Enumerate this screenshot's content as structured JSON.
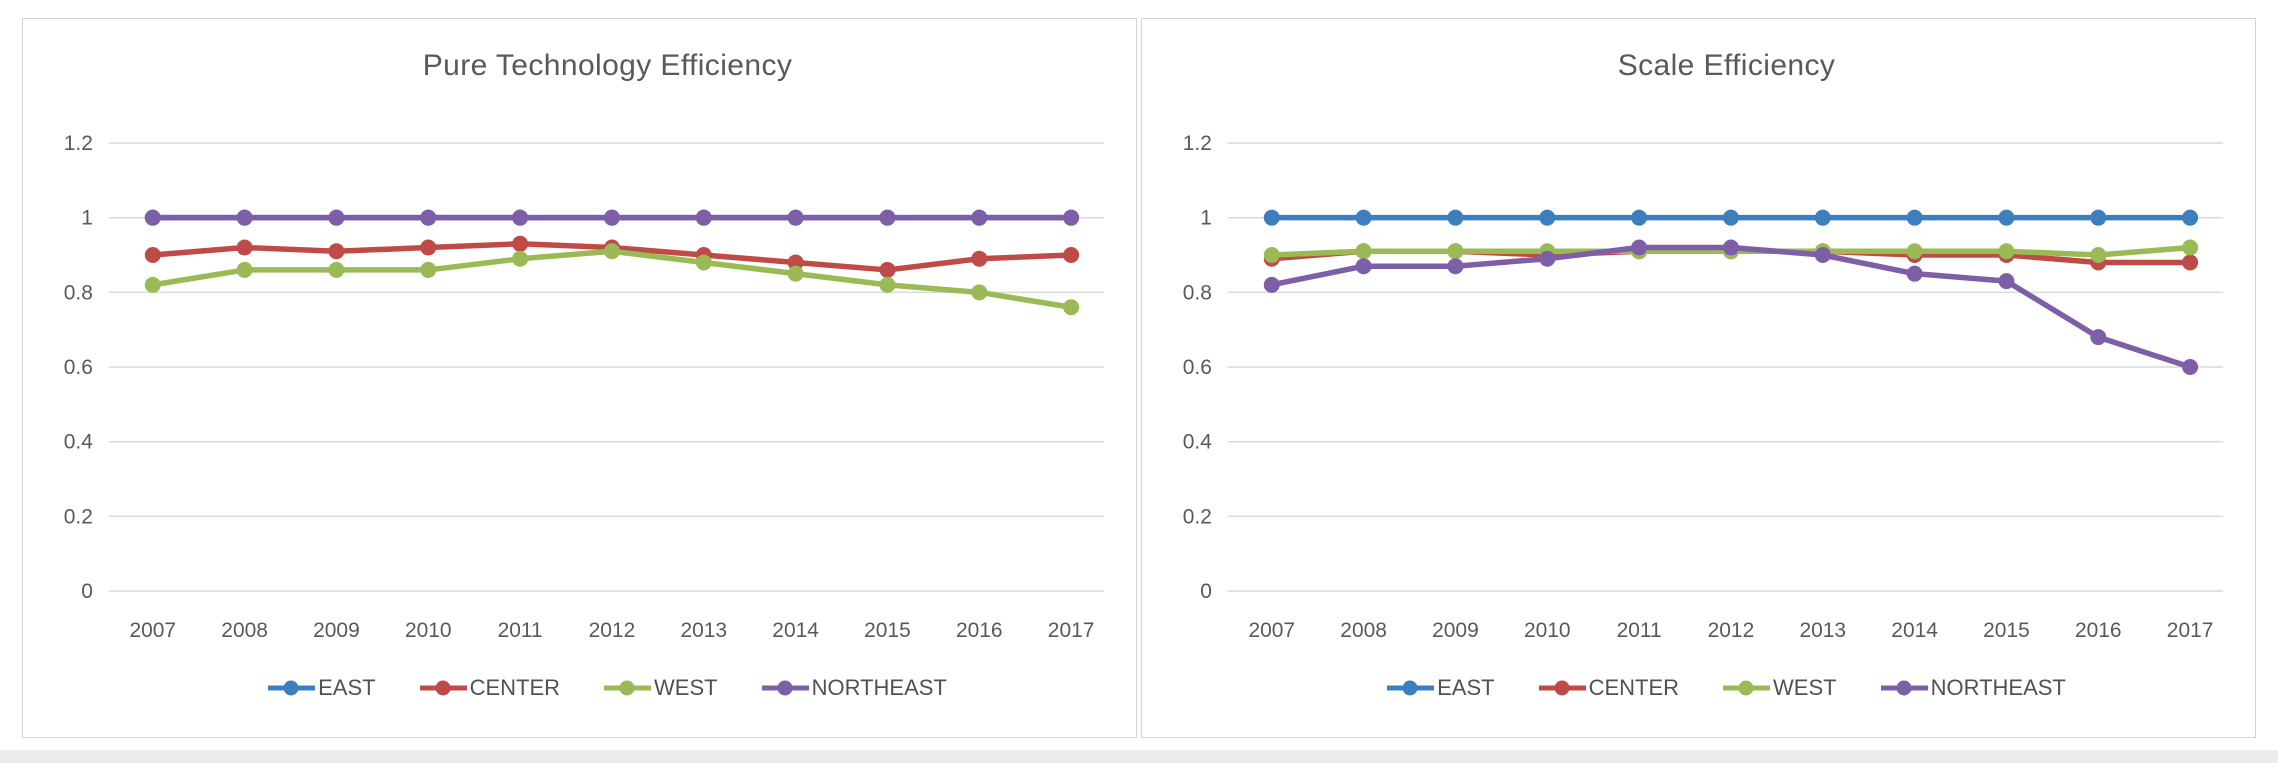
{
  "page": {
    "background": "#ffffff",
    "footer_strip_color": "#ececec"
  },
  "styles": {
    "grid_color": "#d9d9d9",
    "panel_border_color": "#d4d4d4",
    "title_color": "#595959",
    "tick_color": "#595959",
    "legend_text_color": "#515151"
  },
  "chart_data": [
    {
      "type": "line",
      "title": "Pure Technology Efficiency",
      "categories": [
        "2007",
        "2008",
        "2009",
        "2010",
        "2011",
        "2012",
        "2013",
        "2014",
        "2015",
        "2016",
        "2017"
      ],
      "yticks": [
        "0",
        "0.2",
        "0.4",
        "0.6",
        "0.8",
        "1",
        "1.2"
      ],
      "ylim": [
        0,
        1.2
      ],
      "grid": true,
      "legend_position": "bottom",
      "series": [
        {
          "name": "EAST",
          "color": "#3d7ebf",
          "values": [
            1.0,
            1.0,
            1.0,
            1.0,
            1.0,
            1.0,
            1.0,
            1.0,
            1.0,
            1.0,
            1.0
          ]
        },
        {
          "name": "CENTER",
          "color": "#be4b48",
          "values": [
            0.9,
            0.92,
            0.91,
            0.92,
            0.93,
            0.92,
            0.9,
            0.88,
            0.86,
            0.89,
            0.9
          ]
        },
        {
          "name": "WEST",
          "color": "#9aba56",
          "values": [
            0.82,
            0.86,
            0.86,
            0.86,
            0.89,
            0.91,
            0.88,
            0.85,
            0.82,
            0.8,
            0.76
          ]
        },
        {
          "name": "NORTHEAST",
          "color": "#7d5fa7",
          "values": [
            1.0,
            1.0,
            1.0,
            1.0,
            1.0,
            1.0,
            1.0,
            1.0,
            1.0,
            1.0,
            1.0
          ]
        }
      ]
    },
    {
      "type": "line",
      "title": "Scale Efficiency",
      "categories": [
        "2007",
        "2008",
        "2009",
        "2010",
        "2011",
        "2012",
        "2013",
        "2014",
        "2015",
        "2016",
        "2017"
      ],
      "yticks": [
        "0",
        "0.2",
        "0.4",
        "0.6",
        "0.8",
        "1",
        "1.2"
      ],
      "ylim": [
        0,
        1.2
      ],
      "grid": true,
      "legend_position": "bottom",
      "series": [
        {
          "name": "EAST",
          "color": "#3d7ebf",
          "values": [
            1.0,
            1.0,
            1.0,
            1.0,
            1.0,
            1.0,
            1.0,
            1.0,
            1.0,
            1.0,
            1.0
          ]
        },
        {
          "name": "CENTER",
          "color": "#be4b48",
          "values": [
            0.89,
            0.91,
            0.91,
            0.9,
            0.91,
            0.91,
            0.91,
            0.9,
            0.9,
            0.88,
            0.88
          ]
        },
        {
          "name": "WEST",
          "color": "#9aba56",
          "values": [
            0.9,
            0.91,
            0.91,
            0.91,
            0.91,
            0.91,
            0.91,
            0.91,
            0.91,
            0.9,
            0.92
          ]
        },
        {
          "name": "NORTHEAST",
          "color": "#7d5fa7",
          "values": [
            0.82,
            0.87,
            0.87,
            0.89,
            0.92,
            0.92,
            0.9,
            0.85,
            0.83,
            0.68,
            0.6
          ]
        }
      ]
    }
  ]
}
